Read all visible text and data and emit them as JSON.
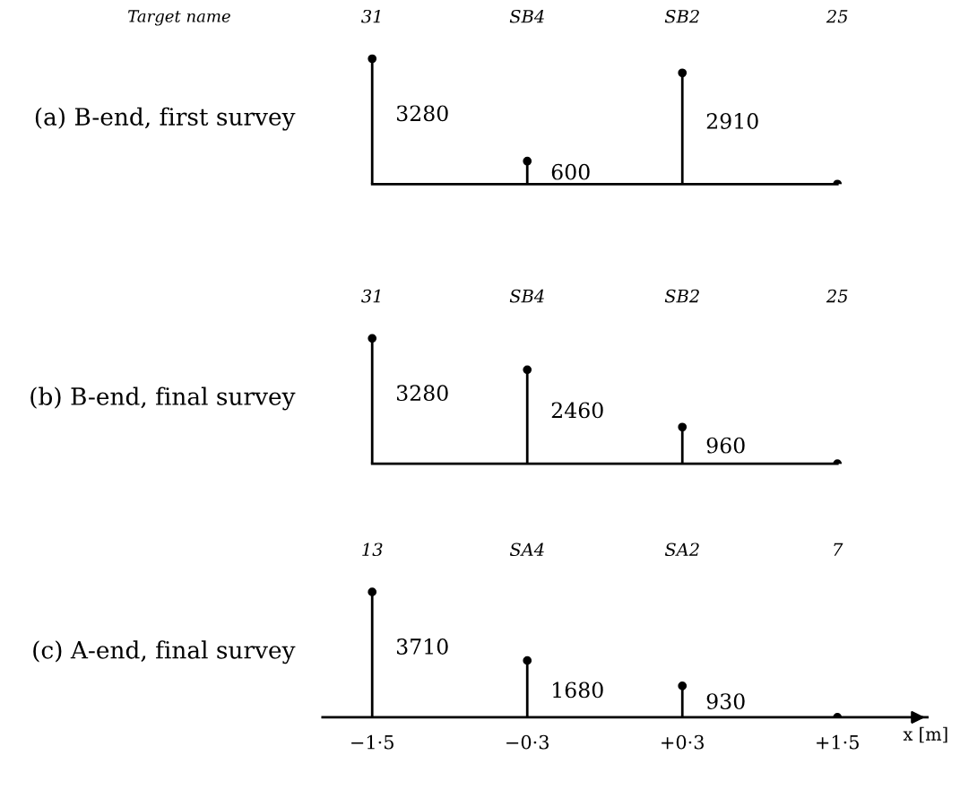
{
  "chart_data": [
    {
      "type": "lollipop",
      "ylabel": "(a) B-end, first survey",
      "annotations": [
        "Target name"
      ],
      "categories": [
        "31",
        "SB4",
        "SB2",
        "25"
      ],
      "color": "#000000",
      "marker": "circle",
      "values": [
        3280,
        600,
        2910,
        0
      ],
      "value_labels": [
        "3280",
        "600",
        "2910",
        null
      ],
      "tick_labels": "x",
      "legend": false
    },
    {
      "type": "lollipop",
      "ylabel": "(b) B-end, final survey",
      "categories": [
        "31",
        "SB4",
        "SB2",
        "25"
      ],
      "color": "#000000",
      "marker": "circle",
      "values": [
        3280,
        2460,
        960,
        0
      ],
      "value_labels": [
        "3280",
        "2460",
        "960",
        null
      ],
      "tick_labels": "x",
      "legend": false
    },
    {
      "type": "lollipop",
      "ylabel": "(c) A-end, final survey",
      "xlabel": "x [m]",
      "annotations": [
        "13",
        "SA4",
        "SA2",
        "7"
      ],
      "categories": [
        "−1·5",
        "−0·3",
        "+0·3",
        "+1·5"
      ],
      "color": "#000000",
      "marker": "circle",
      "values": [
        3710,
        1680,
        930,
        0
      ],
      "value_labels": [
        "3710",
        "1680",
        "930",
        null
      ],
      "tick_labels": "x",
      "legend": false
    }
  ]
}
